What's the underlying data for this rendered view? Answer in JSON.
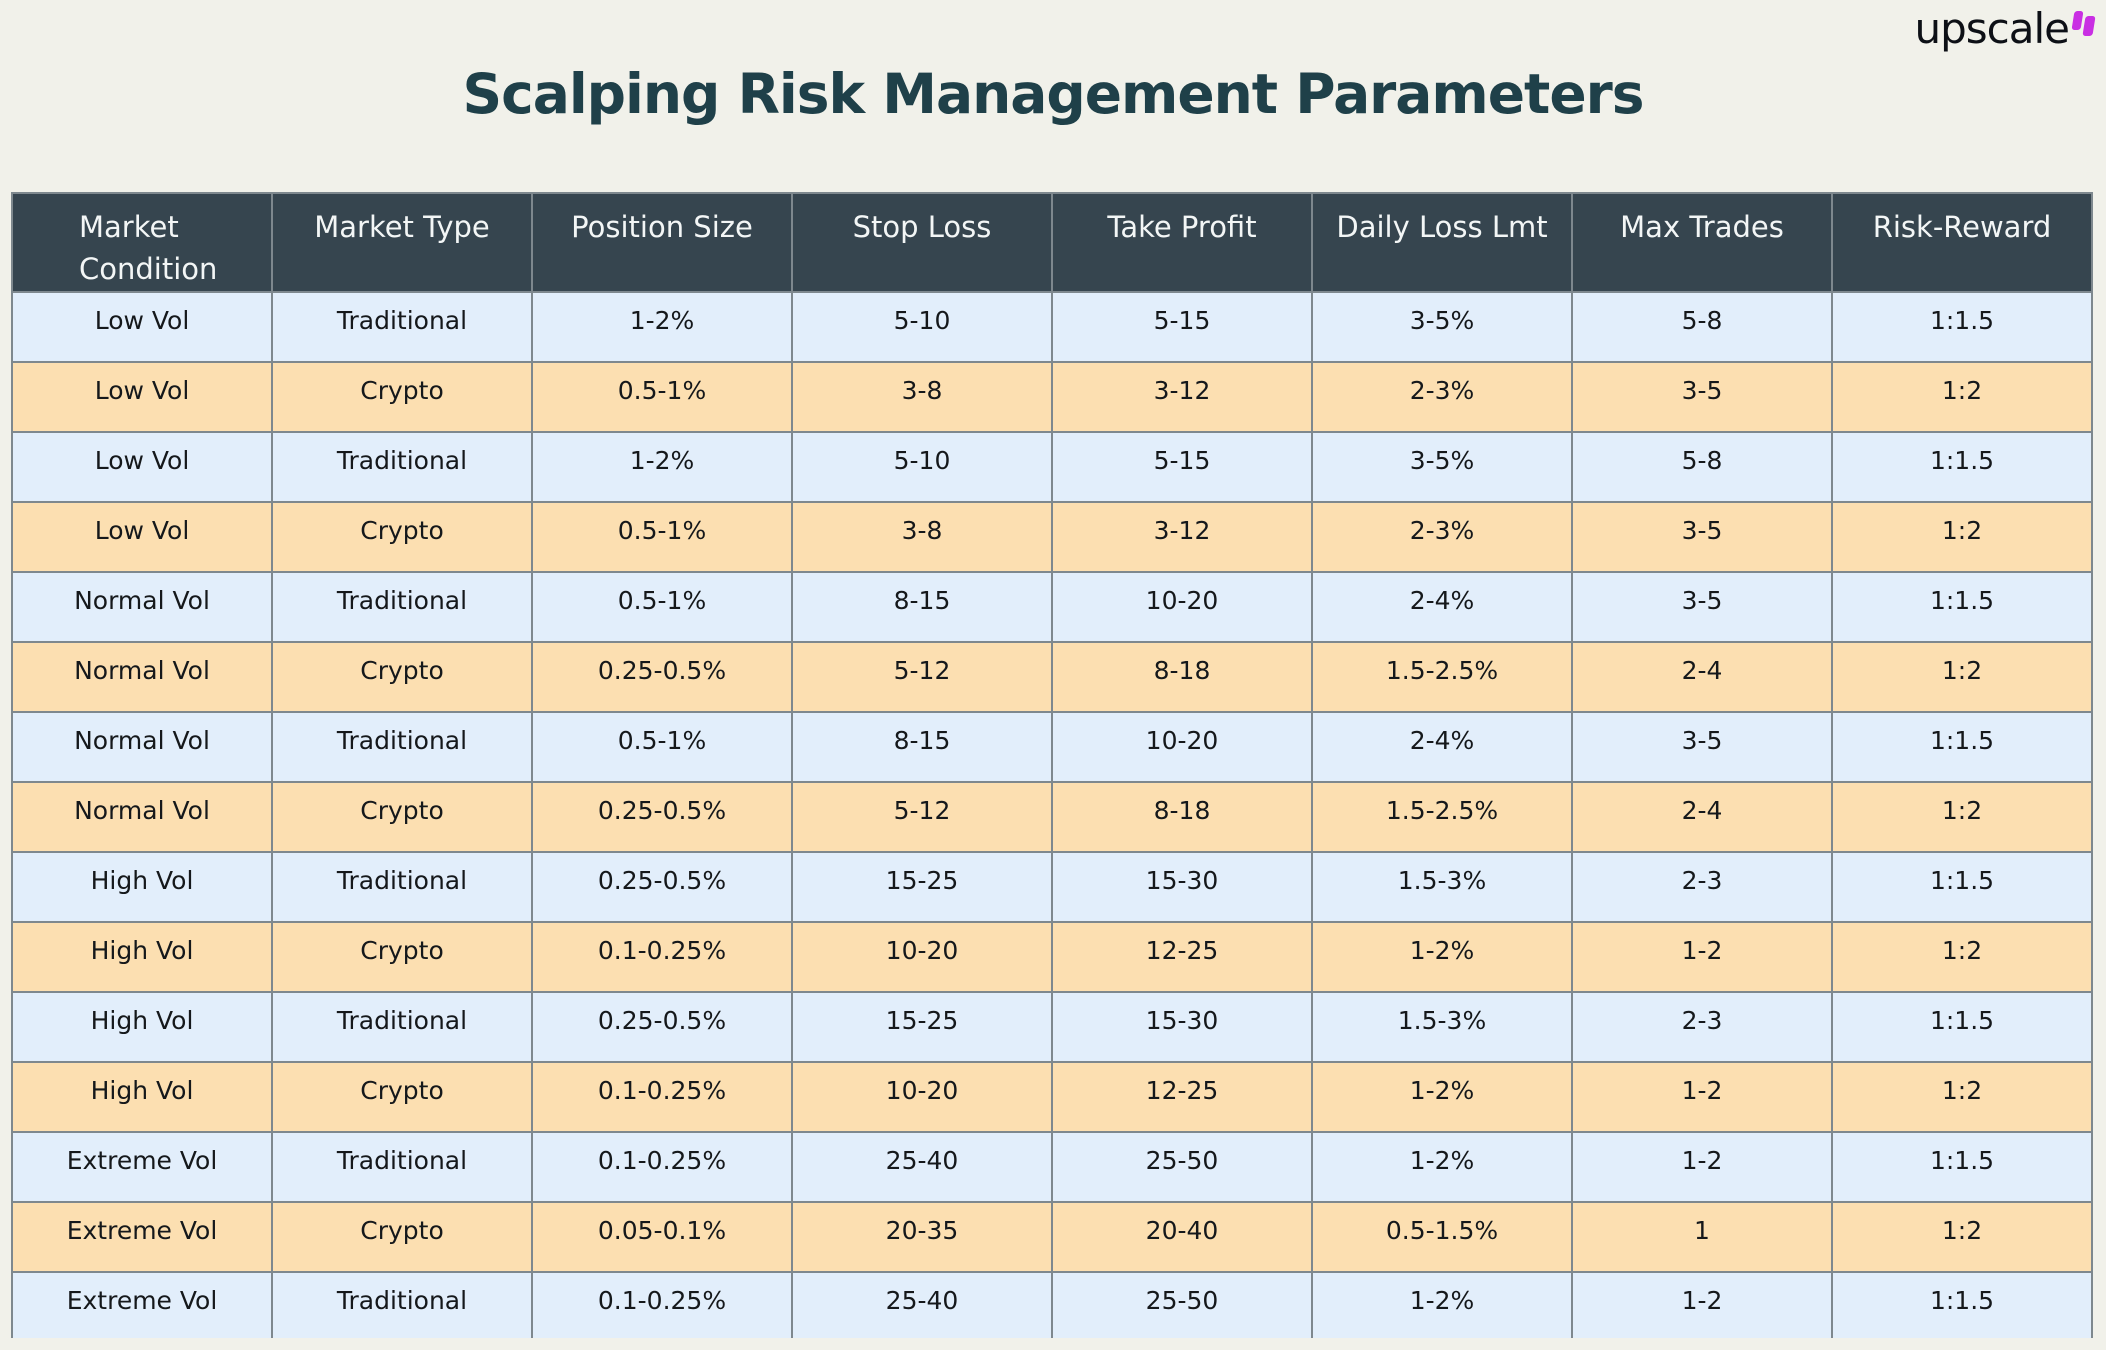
{
  "page": {
    "background_color": "#f1f1ea"
  },
  "logo": {
    "text": "upscale",
    "mark_color": "#c92fe3"
  },
  "title": "Scalping Risk Management Parameters",
  "colors": {
    "title_text": "#1f4049",
    "header_bg": "#36454f",
    "header_text": "#f3f6f6",
    "row_blue": "#e2eefb",
    "row_peach": "#fcdfb1",
    "grid_border": "#7e888e"
  },
  "chart_data": {
    "type": "table",
    "title": "Scalping Risk Management Parameters",
    "columns": [
      "Market Condition",
      "Market Type",
      "Position Size",
      "Stop Loss",
      "Take Profit",
      "Daily Loss Lmt",
      "Max Trades",
      "Risk-Reward"
    ],
    "rows": [
      [
        "Low Vol",
        "Traditional",
        "1-2%",
        "5-10",
        "5-15",
        "3-5%",
        "5-8",
        "1:1.5"
      ],
      [
        "Low Vol",
        "Crypto",
        "0.5-1%",
        "3-8",
        "3-12",
        "2-3%",
        "3-5",
        "1:2"
      ],
      [
        "Low Vol",
        "Traditional",
        "1-2%",
        "5-10",
        "5-15",
        "3-5%",
        "5-8",
        "1:1.5"
      ],
      [
        "Low Vol",
        "Crypto",
        "0.5-1%",
        "3-8",
        "3-12",
        "2-3%",
        "3-5",
        "1:2"
      ],
      [
        "Normal Vol",
        "Traditional",
        "0.5-1%",
        "8-15",
        "10-20",
        "2-4%",
        "3-5",
        "1:1.5"
      ],
      [
        "Normal Vol",
        "Crypto",
        "0.25-0.5%",
        "5-12",
        "8-18",
        "1.5-2.5%",
        "2-4",
        "1:2"
      ],
      [
        "Normal Vol",
        "Traditional",
        "0.5-1%",
        "8-15",
        "10-20",
        "2-4%",
        "3-5",
        "1:1.5"
      ],
      [
        "Normal Vol",
        "Crypto",
        "0.25-0.5%",
        "5-12",
        "8-18",
        "1.5-2.5%",
        "2-4",
        "1:2"
      ],
      [
        "High Vol",
        "Traditional",
        "0.25-0.5%",
        "15-25",
        "15-30",
        "1.5-3%",
        "2-3",
        "1:1.5"
      ],
      [
        "High Vol",
        "Crypto",
        "0.1-0.25%",
        "10-20",
        "12-25",
        "1-2%",
        "1-2",
        "1:2"
      ],
      [
        "High Vol",
        "Traditional",
        "0.25-0.5%",
        "15-25",
        "15-30",
        "1.5-3%",
        "2-3",
        "1:1.5"
      ],
      [
        "High Vol",
        "Crypto",
        "0.1-0.25%",
        "10-20",
        "12-25",
        "1-2%",
        "1-2",
        "1:2"
      ],
      [
        "Extreme Vol",
        "Traditional",
        "0.1-0.25%",
        "25-40",
        "25-50",
        "1-2%",
        "1-2",
        "1:1.5"
      ],
      [
        "Extreme Vol",
        "Crypto",
        "0.05-0.1%",
        "20-35",
        "20-40",
        "0.5-1.5%",
        "1",
        "1:2"
      ],
      [
        "Extreme Vol",
        "Traditional",
        "0.1-0.25%",
        "25-40",
        "25-50",
        "1-2%",
        "1-2",
        "1:1.5"
      ]
    ]
  }
}
